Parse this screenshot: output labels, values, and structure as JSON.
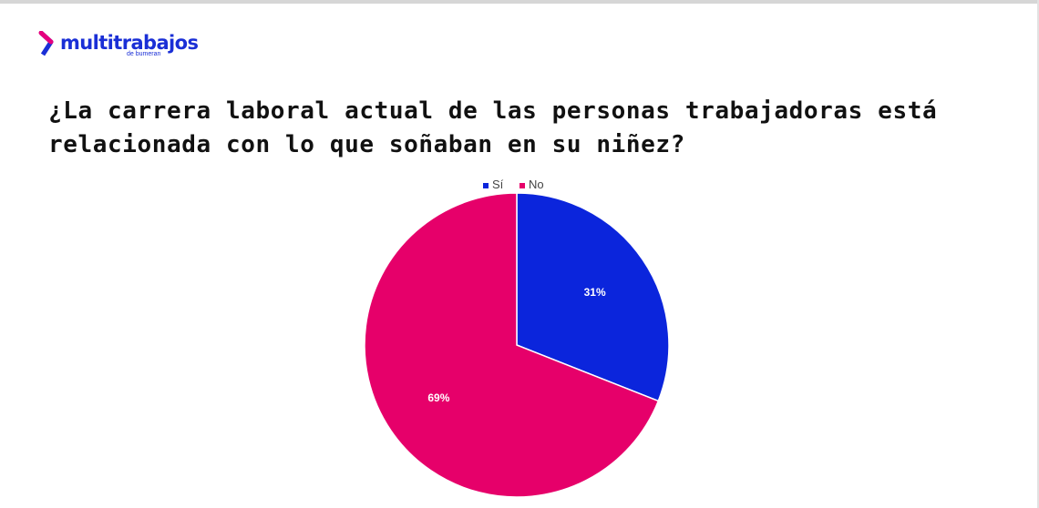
{
  "brand": {
    "name": "multitrabajos",
    "tagline": "de bumeran",
    "color": "#1a2fd6",
    "accent": "#e6007e"
  },
  "chart_data": {
    "type": "pie",
    "title": "¿La carrera laboral actual de las personas trabajadoras está relacionada con lo que soñaban en su niñez?",
    "categories": [
      "Sí",
      "No"
    ],
    "values": [
      31,
      69
    ],
    "data_labels": [
      "31%",
      "69%"
    ],
    "colors": [
      "#0b25dc",
      "#e6006a"
    ],
    "legend_position": "top"
  }
}
